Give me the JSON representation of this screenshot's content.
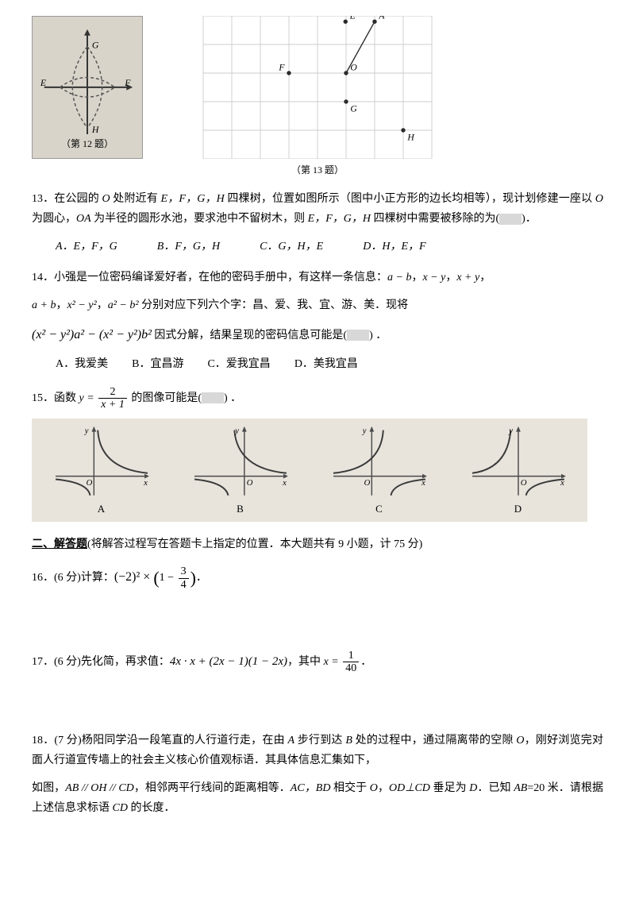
{
  "figures": {
    "fig12": {
      "labels": {
        "G": "G",
        "H": "H",
        "E": "E",
        "F": "F"
      },
      "caption": "（第 12 题）",
      "bg": "#d8d4ca",
      "line_color": "#333333",
      "dash_color": "#555555"
    },
    "fig13": {
      "grid_color": "#cccccc",
      "dot_color": "#2a2a2a",
      "line_color": "#2a2a2a",
      "grid_cols": 8,
      "grid_rows": 5,
      "cell": 40,
      "points": {
        "E": {
          "x": 4.98,
          "y": 0.2,
          "label": "E"
        },
        "A": {
          "x": 6,
          "y": 0.2,
          "label": "A"
        },
        "F": {
          "x": 3,
          "y": 2,
          "label": "F"
        },
        "O": {
          "x": 5,
          "y": 2,
          "label": "O"
        },
        "G": {
          "x": 5,
          "y": 3,
          "label": "G"
        },
        "H": {
          "x": 7,
          "y": 4,
          "label": "H"
        }
      },
      "line": {
        "from": "O",
        "to": "A"
      },
      "caption": "（第 13 题）"
    }
  },
  "q13": {
    "text_a": "13．在公园的 ",
    "o": "O",
    "text_b": " 处附近有 ",
    "efgh": "E，F，G，H",
    "text_c": " 四棵树，位置如图所示（图中小正方形的边长均相等），现计划修建一座以 ",
    "text_d": " 为圆心，",
    "oa": "OA",
    "text_e": " 为半径的圆形水池，要求池中不留树木，则 ",
    "text_f": " 四棵树中需要被移除的为(",
    "text_g": ")．",
    "options": {
      "A": "A．E，F，G",
      "B": "B．F，G，H",
      "C": "C．G，H，E",
      "D": "D．H，E，F"
    }
  },
  "q14": {
    "text_a": "14．小强是一位密码编译爱好者，在他的密码手册中，有这样一条信息：",
    "expr1": "a − b",
    "expr2": "x − y",
    "expr3": "x + y",
    "expr4": "a + b",
    "expr5": "x² − y²",
    "expr6": "a² − b²",
    "text_b": " 分别对应下列六个字：昌、爱、我、宜、游、美．现将",
    "factor_line": "(x² − y²)a² − (x² − y²)b²",
    "text_c": " 因式分解，结果呈现的密码信息可能是(",
    "text_d": ") ．",
    "options": {
      "A": "A．我爱美",
      "B": "B．宜昌游",
      "C": "C．爱我宜昌",
      "D": "D．美我宜昌"
    }
  },
  "q15": {
    "text_a": "15．函数 ",
    "func_pre": "y = ",
    "num": "2",
    "den": "x + 1",
    "text_b": " 的图像可能是(",
    "text_c": ") ．",
    "strip_bg": "#e8e4dc",
    "axis_color": "#4a4a4a",
    "curve_color": "#3a3a3a",
    "labels": {
      "A": "A",
      "B": "B",
      "C": "C",
      "D": "D",
      "x": "x",
      "y": "y",
      "O": "O"
    }
  },
  "section2": {
    "head_a": "二、解答题",
    "head_b": "(将解答过程写在答题卡上指定的位置．本大题共有 9 小题，计 75 分)"
  },
  "q16": {
    "text_a": "16．(6 分)计算：",
    "expr": "(−2)² × ",
    "inner_pre": "1 − ",
    "num": "3",
    "den": "4",
    "text_b": "．"
  },
  "q17": {
    "text_a": "17．(6 分)先化简，再求值：",
    "expr": "4x · x + (2x − 1)(1 − 2x)",
    "text_b": "，其中 ",
    "xpre": "x = ",
    "num": "1",
    "den": "40",
    "text_c": "．"
  },
  "q18": {
    "text_a": "18．(7 分)杨阳同学沿一段笔直的人行道行走，在由 ",
    "A": "A",
    "text_b": " 步行到达 ",
    "B": "B",
    "text_c": " 处的过程中，通过隔离带的空隙 ",
    "O": "O",
    "text_d": "，刚好浏览完对面人行道宣传墙上的社会主义核心价值观标语．其具体信息汇集如下，",
    "line2a": "如图，",
    "par": "AB // OH // CD",
    "line2b": "，相邻两平行线间的距离相等．",
    "acbd": "AC，BD",
    "line2c": " 相交于 ",
    "line2d": "，",
    "perp": "OD⊥CD",
    "line2e": " 垂足为 ",
    "D": "D",
    "line2f": "．已知 ",
    "ab": "AB",
    "abval": "=20 米．请根据上述信息求标语 ",
    "cd": "CD",
    "line2g": " 的长度．"
  }
}
